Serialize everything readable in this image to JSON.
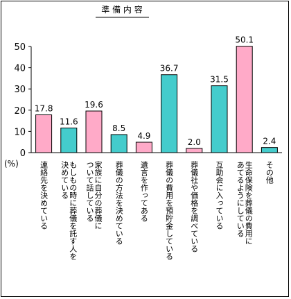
{
  "chart_data": {
    "type": "bar",
    "title": "準 備 内 容",
    "ylabel": "(%)",
    "ylim": [
      0,
      50
    ],
    "yticks": [
      0,
      10,
      20,
      30,
      40,
      50
    ],
    "grid": false,
    "categories": [
      "連絡先を決めている",
      "もしもの時に葬儀を託す人を決めている",
      "家族に自分の葬儀について話している",
      "葬儀の方法を決めている",
      "遺言を作ってある",
      "葬儀の費用を預貯金している",
      "葬儀社や価格を調べている",
      "互助会に入っている",
      "生命保険を葬儀の費用にあてるようにしている",
      "その他"
    ],
    "category_lines": [
      [
        "連絡先を決めている"
      ],
      [
        "もしもの時に葬儀を託す人を",
        "決めている"
      ],
      [
        "家族に自分の葬儀に",
        "ついて話している"
      ],
      [
        "葬儀の方法を決めている"
      ],
      [
        "遺言を作ってある"
      ],
      [
        "葬儀の費用を預貯金している"
      ],
      [
        "葬儀社や価格を調べている"
      ],
      [
        "互助会に入っている"
      ],
      [
        "生命保険を葬儀の費用に",
        "あてるようにしている"
      ],
      [
        "その他"
      ]
    ],
    "values": [
      17.8,
      11.6,
      19.6,
      8.5,
      4.9,
      36.7,
      2.0,
      31.5,
      50.1,
      2.4
    ],
    "value_labels": [
      "17.8",
      "11.6",
      "19.6",
      "8.5",
      "4.9",
      "36.7",
      "2.0",
      "31.5",
      "50.1",
      "2.4"
    ],
    "bar_colors": [
      "#ffaac8",
      "#44cccc",
      "#ffaac8",
      "#44cccc",
      "#ffaac8",
      "#44cccc",
      "#ffaac8",
      "#44cccc",
      "#ffaac8",
      "#44cccc"
    ]
  }
}
